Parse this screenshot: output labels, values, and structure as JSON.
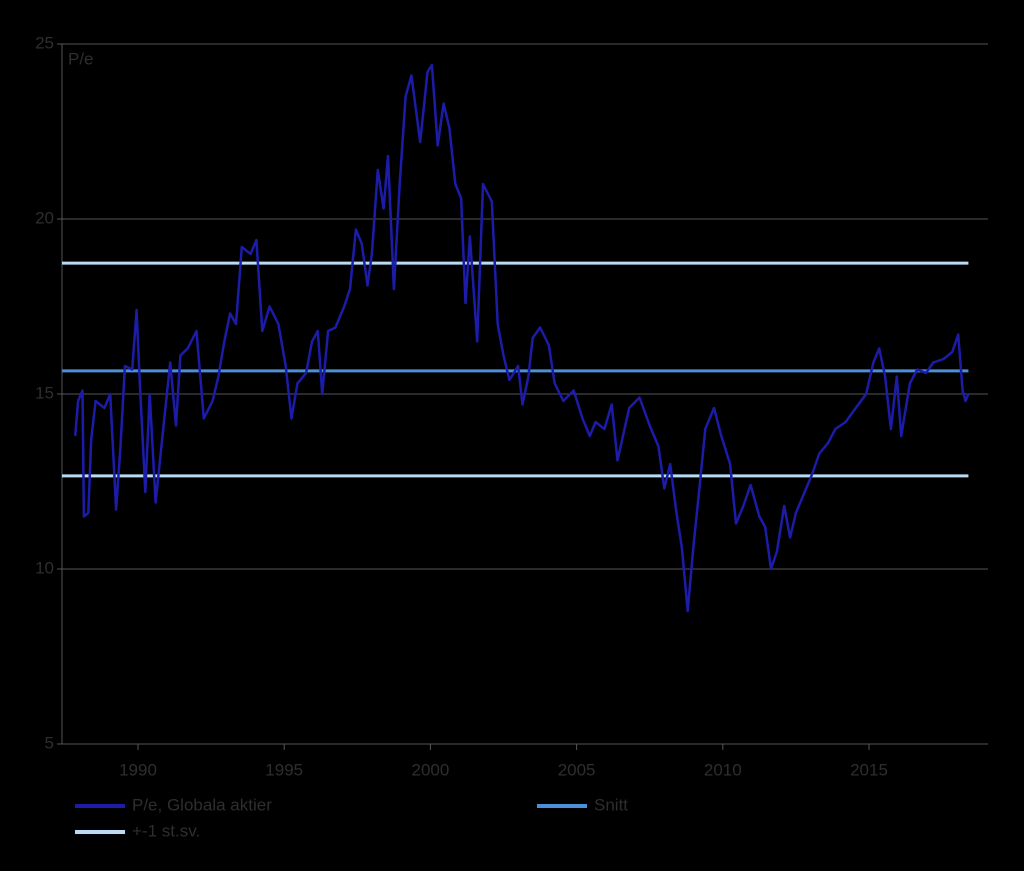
{
  "chart_data": {
    "type": "line",
    "y_label": "P/e",
    "x": [
      1987.85,
      1987.95,
      1988.1,
      1988.15,
      1988.3,
      1988.4,
      1988.55,
      1988.85,
      1989.05,
      1989.25,
      1989.4,
      1989.55,
      1989.8,
      1989.95,
      1990.05,
      1990.25,
      1990.4,
      1990.6,
      1990.8,
      1991.1,
      1991.3,
      1991.45,
      1991.7,
      1992.0,
      1992.1,
      1992.25,
      1992.55,
      1992.75,
      1992.95,
      1993.15,
      1993.35,
      1993.55,
      1993.85,
      1994.05,
      1994.25,
      1994.5,
      1994.8,
      1995.05,
      1995.25,
      1995.45,
      1995.75,
      1995.95,
      1996.15,
      1996.3,
      1996.5,
      1996.75,
      1997.05,
      1997.25,
      1997.45,
      1997.65,
      1997.85,
      1998.0,
      1998.2,
      1998.4,
      1998.55,
      1998.75,
      1998.95,
      1999.15,
      1999.35,
      1999.65,
      1999.9,
      2000.05,
      2000.25,
      2000.45,
      2000.65,
      2000.85,
      2001.05,
      2001.2,
      2001.35,
      2001.6,
      2001.8,
      2002.1,
      2002.3,
      2002.5,
      2002.7,
      2003.0,
      2003.15,
      2003.35,
      2003.5,
      2003.75,
      2004.05,
      2004.25,
      2004.55,
      2004.9,
      2005.2,
      2005.45,
      2005.65,
      2005.95,
      2006.2,
      2006.4,
      2006.8,
      2007.15,
      2007.5,
      2007.8,
      2008.0,
      2008.2,
      2008.4,
      2008.6,
      2008.8,
      2009.0,
      2009.2,
      2009.4,
      2009.7,
      2009.95,
      2010.25,
      2010.45,
      2010.7,
      2010.95,
      2011.25,
      2011.45,
      2011.65,
      2011.85,
      2012.1,
      2012.3,
      2012.5,
      2012.75,
      2013.05,
      2013.3,
      2013.6,
      2013.85,
      2014.2,
      2014.55,
      2014.9,
      2015.15,
      2015.35,
      2015.55,
      2015.75,
      2015.95,
      2016.1,
      2016.4,
      2016.65,
      2016.95,
      2017.2,
      2017.55,
      2017.85,
      2018.05,
      2018.2,
      2018.3,
      2018.4
    ],
    "series": [
      {
        "name": "P/e, Globala aktier",
        "color": "#1c1ca8",
        "values": [
          13.8,
          14.8,
          15.1,
          11.5,
          11.6,
          13.7,
          14.8,
          14.6,
          15.0,
          11.7,
          13.5,
          15.8,
          15.7,
          17.4,
          15.5,
          12.2,
          15.0,
          11.9,
          13.5,
          15.9,
          14.1,
          16.1,
          16.3,
          16.8,
          15.8,
          14.3,
          14.8,
          15.5,
          16.5,
          17.3,
          17.0,
          19.2,
          19.0,
          19.4,
          16.8,
          17.5,
          17.0,
          15.8,
          14.3,
          15.3,
          15.6,
          16.5,
          16.8,
          15.0,
          16.8,
          16.9,
          17.5,
          18.0,
          19.7,
          19.3,
          18.1,
          19.0,
          21.4,
          20.3,
          21.8,
          18.0,
          21.0,
          23.5,
          24.1,
          22.2,
          24.2,
          24.4,
          22.1,
          23.3,
          22.6,
          21.0,
          20.6,
          17.6,
          19.5,
          16.5,
          21.0,
          20.5,
          17.0,
          16.1,
          15.4,
          15.8,
          14.7,
          15.5,
          16.6,
          16.9,
          16.4,
          15.3,
          14.8,
          15.1,
          14.3,
          13.8,
          14.2,
          14.0,
          14.7,
          13.1,
          14.6,
          14.9,
          14.1,
          13.5,
          12.3,
          13.0,
          11.7,
          10.6,
          8.8,
          10.7,
          12.3,
          14.0,
          14.6,
          13.8,
          13.0,
          11.3,
          11.8,
          12.4,
          11.5,
          11.2,
          10.0,
          10.5,
          11.8,
          10.9,
          11.6,
          12.1,
          12.7,
          13.3,
          13.6,
          14.0,
          14.2,
          14.6,
          15.0,
          15.9,
          16.3,
          15.5,
          14.0,
          15.5,
          13.8,
          15.3,
          15.7,
          15.6,
          15.9,
          16.0,
          16.2,
          16.7,
          15.1,
          14.8,
          15.0
        ]
      }
    ],
    "reference_lines": [
      {
        "name": "Snitt",
        "color": "#4a8fd8",
        "values": [
          15.66
        ]
      },
      {
        "name": "+-1 st.sv.",
        "color": "#b9dcf4",
        "values": [
          18.74,
          12.66
        ]
      }
    ],
    "xlim": [
      1987.4,
      2019.07
    ],
    "xticks": [
      1990,
      1995,
      2000,
      2005,
      2010,
      2015
    ],
    "ylim": [
      5,
      25
    ],
    "yticks": [
      5,
      10,
      15,
      20,
      25
    ],
    "grid": true
  }
}
